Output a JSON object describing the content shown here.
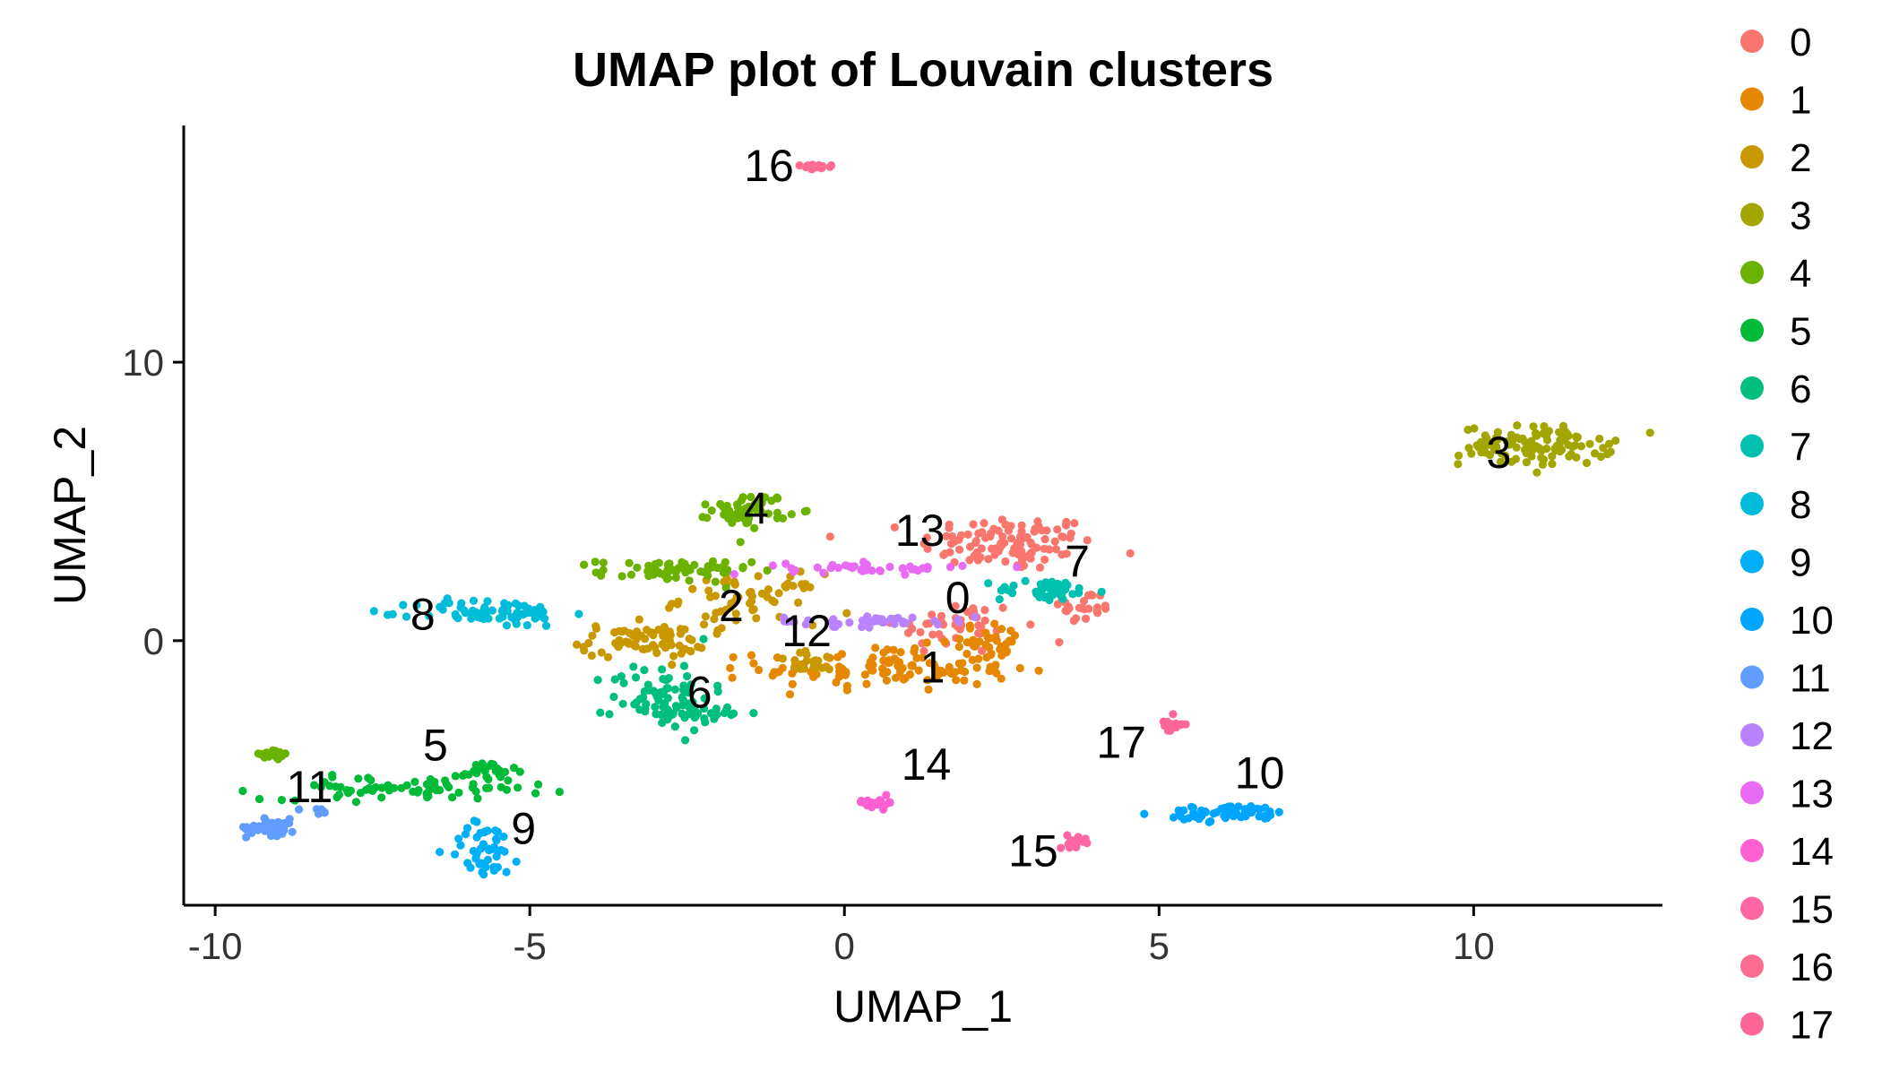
{
  "chart_data": {
    "type": "scatter",
    "title": "UMAP plot of Louvain clusters",
    "xlabel": "UMAP_1",
    "ylabel": "UMAP_2",
    "xlim": [
      -10.5,
      13.0
    ],
    "ylim": [
      -9.5,
      18.5
    ],
    "x_ticks": [
      -10,
      -5,
      0,
      5,
      10
    ],
    "y_ticks": [
      0,
      10
    ],
    "grid": false,
    "legend_position": "right",
    "clusters": [
      {
        "name": "0",
        "color": "#F8766D",
        "label_pos": [
          1.8,
          1.0
        ],
        "parts": [
          {
            "center": [
              2.6,
              3.5
            ],
            "spread": [
              1.4,
              1.0
            ],
            "n": 110
          },
          {
            "center": [
              1.8,
              0.5
            ],
            "spread": [
              1.0,
              1.0
            ],
            "n": 45
          },
          {
            "center": [
              3.8,
              1.2
            ],
            "spread": [
              0.5,
              0.6
            ],
            "n": 25
          }
        ]
      },
      {
        "name": "1",
        "color": "#E58700",
        "label_pos": [
          1.4,
          -1.5
        ],
        "parts": [
          {
            "center": [
              0.7,
              -1.0
            ],
            "spread": [
              2.0,
              0.8
            ],
            "n": 120
          },
          {
            "center": [
              2.3,
              0.0
            ],
            "spread": [
              0.7,
              0.6
            ],
            "n": 30
          }
        ]
      },
      {
        "name": "2",
        "color": "#C99800",
        "label_pos": [
          -1.8,
          0.7
        ],
        "parts": [
          {
            "center": [
              -3.2,
              0.0
            ],
            "spread": [
              1.0,
              0.6
            ],
            "n": 70
          },
          {
            "center": [
              -1.5,
              1.5
            ],
            "spread": [
              1.1,
              0.9
            ],
            "n": 60
          },
          {
            "center": [
              -0.5,
              -0.8
            ],
            "spread": [
              0.6,
              0.4
            ],
            "n": 20
          }
        ]
      },
      {
        "name": "3",
        "color": "#A3A500",
        "label_pos": [
          10.4,
          6.2
        ],
        "parts": [
          {
            "center": [
              11.0,
              7.0
            ],
            "spread": [
              1.2,
              0.7
            ],
            "n": 110
          }
        ]
      },
      {
        "name": "4",
        "color": "#6BB100",
        "label_pos": [
          -1.4,
          4.2
        ],
        "parts": [
          {
            "center": [
              -1.5,
              4.7
            ],
            "spread": [
              0.6,
              0.6
            ],
            "n": 55
          },
          {
            "center": [
              -2.7,
              2.5
            ],
            "spread": [
              1.2,
              0.4
            ],
            "n": 60
          },
          {
            "center": [
              -9.1,
              -4.1
            ],
            "spread": [
              0.4,
              0.2
            ],
            "n": 18
          }
        ]
      },
      {
        "name": "5",
        "color": "#00BA38",
        "label_pos": [
          -6.5,
          -4.3
        ],
        "parts": [
          {
            "center": [
              -7.0,
              -5.3
            ],
            "spread": [
              2.2,
              0.4
            ],
            "n": 70
          },
          {
            "center": [
              -5.6,
              -4.7
            ],
            "spread": [
              0.4,
              0.4
            ],
            "n": 25
          }
        ]
      },
      {
        "name": "6",
        "color": "#00BF7D",
        "label_pos": [
          -2.3,
          -2.4
        ],
        "parts": [
          {
            "center": [
              -2.9,
              -2.0
            ],
            "spread": [
              0.8,
              1.2
            ],
            "n": 80
          },
          {
            "center": [
              -2.0,
              -2.6
            ],
            "spread": [
              0.6,
              0.3
            ],
            "n": 20
          }
        ]
      },
      {
        "name": "7",
        "color": "#00C0AF",
        "label_pos": [
          3.7,
          2.3
        ],
        "parts": [
          {
            "center": [
              3.2,
              1.8
            ],
            "spread": [
              0.8,
              0.4
            ],
            "n": 45
          }
        ]
      },
      {
        "name": "8",
        "color": "#00BCD8",
        "label_pos": [
          -6.7,
          0.4
        ],
        "parts": [
          {
            "center": [
              -5.6,
              1.0
            ],
            "spread": [
              1.2,
              0.5
            ],
            "n": 70
          }
        ]
      },
      {
        "name": "9",
        "color": "#00B0F6",
        "label_pos": [
          -5.1,
          -7.3
        ],
        "parts": [
          {
            "center": [
              -5.7,
              -7.5
            ],
            "spread": [
              0.6,
              1.0
            ],
            "n": 45
          }
        ]
      },
      {
        "name": "10",
        "color": "#00A5FF",
        "label_pos": [
          6.6,
          -5.3
        ],
        "parts": [
          {
            "center": [
              6.1,
              -6.2
            ],
            "spread": [
              1.0,
              0.3
            ],
            "n": 55
          }
        ]
      },
      {
        "name": "11",
        "color": "#619CFF",
        "label_pos": [
          -8.5,
          -5.8
        ],
        "parts": [
          {
            "center": [
              -9.1,
              -6.7
            ],
            "spread": [
              0.4,
              0.3
            ],
            "n": 60
          },
          {
            "center": [
              -8.4,
              -6.1
            ],
            "spread": [
              0.3,
              0.1
            ],
            "n": 8
          }
        ]
      },
      {
        "name": "12",
        "color": "#B983FF",
        "label_pos": [
          -0.6,
          -0.2
        ],
        "parts": [
          {
            "center": [
              0.5,
              0.7
            ],
            "spread": [
              1.6,
              0.2
            ],
            "n": 40
          }
        ]
      },
      {
        "name": "13",
        "color": "#E76BF3",
        "label_pos": [
          1.2,
          3.4
        ],
        "parts": [
          {
            "center": [
              0.5,
              2.6
            ],
            "spread": [
              1.4,
              0.2
            ],
            "n": 40
          }
        ]
      },
      {
        "name": "14",
        "color": "#FD61D1",
        "label_pos": [
          1.3,
          -5.0
        ],
        "parts": [
          {
            "center": [
              0.5,
              -5.8
            ],
            "spread": [
              0.3,
              0.2
            ],
            "n": 20
          }
        ]
      },
      {
        "name": "15",
        "color": "#FF67A4",
        "label_pos": [
          3.0,
          -8.1
        ],
        "parts": [
          {
            "center": [
              3.7,
              -7.2
            ],
            "spread": [
              0.3,
              0.2
            ],
            "n": 16
          }
        ]
      },
      {
        "name": "16",
        "color": "#FF6C91",
        "label_pos": [
          -1.2,
          16.5
        ],
        "parts": [
          {
            "center": [
              -0.5,
              17.0
            ],
            "spread": [
              0.3,
              0.1
            ],
            "n": 15
          }
        ]
      },
      {
        "name": "17",
        "color": "#FF6698",
        "label_pos": [
          4.4,
          -4.2
        ],
        "parts": [
          {
            "center": [
              5.2,
              -3.0
            ],
            "spread": [
              0.2,
              0.3
            ],
            "n": 14
          }
        ]
      }
    ]
  }
}
